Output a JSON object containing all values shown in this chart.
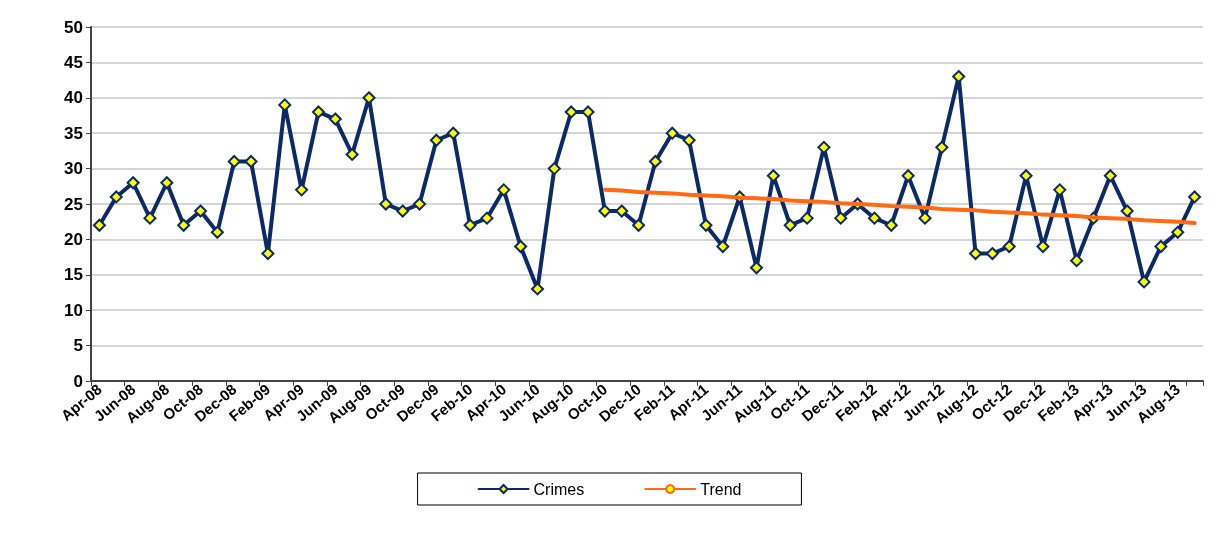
{
  "chart_data": {
    "type": "line",
    "categories": [
      "Apr-08",
      null,
      "Jun-08",
      null,
      "Aug-08",
      null,
      "Oct-08",
      null,
      "Dec-08",
      null,
      "Feb-09",
      null,
      "Apr-09",
      null,
      "Jun-09",
      null,
      "Aug-09",
      null,
      "Oct-09",
      null,
      "Dec-09",
      null,
      "Feb-10",
      null,
      "Apr-10",
      null,
      "Jun-10",
      null,
      "Aug-10",
      null,
      "Oct-10",
      null,
      "Dec-10",
      null,
      "Feb-11",
      null,
      "Apr-11",
      null,
      "Jun-11",
      null,
      "Aug-11",
      null,
      "Oct-11",
      null,
      "Dec-11",
      null,
      "Feb-12",
      null,
      "Apr-12",
      null,
      "Jun-12",
      null,
      "Aug-12",
      null,
      "Oct-12",
      null,
      "Dec-12",
      null,
      "Feb-13",
      null,
      "Apr-13",
      null,
      "Jun-13",
      null,
      "Aug-13",
      null
    ],
    "series": [
      {
        "name": "Crimes",
        "color": "#0d2a66",
        "marker": "diamond",
        "values": [
          22,
          26,
          28,
          23,
          28,
          22,
          24,
          21,
          31,
          31,
          18,
          39,
          27,
          38,
          37,
          32,
          40,
          25,
          24,
          25,
          34,
          35,
          22,
          23,
          27,
          19,
          13,
          30,
          38,
          38,
          24,
          24,
          22,
          31,
          35,
          34,
          22,
          19,
          26,
          16,
          29,
          22,
          23,
          33,
          23,
          25,
          23,
          22,
          29,
          23,
          33,
          43,
          18,
          18,
          19,
          29,
          19,
          27,
          17,
          23,
          29,
          24,
          14,
          19,
          21,
          26
        ]
      },
      {
        "name": "Trend",
        "color": "#ff6a13",
        "marker": "none",
        "values": [
          null,
          null,
          null,
          null,
          null,
          null,
          null,
          null,
          null,
          null,
          null,
          null,
          null,
          null,
          null,
          null,
          null,
          null,
          null,
          null,
          null,
          null,
          null,
          null,
          null,
          null,
          null,
          null,
          null,
          null,
          27.0,
          26.9,
          26.7,
          26.6,
          26.5,
          26.3,
          26.2,
          26.1,
          25.9,
          25.8,
          25.7,
          25.5,
          25.4,
          25.3,
          25.1,
          25.0,
          24.9,
          24.7,
          24.6,
          24.5,
          24.3,
          24.2,
          24.1,
          23.9,
          23.8,
          23.7,
          23.5,
          23.4,
          23.3,
          23.1,
          23.0,
          22.9,
          22.7,
          22.6,
          22.5,
          22.3
        ]
      }
    ],
    "ylim": [
      0,
      50
    ],
    "yticks": [
      0,
      5,
      10,
      15,
      20,
      25,
      30,
      35,
      40,
      45,
      50
    ],
    "grid": "y",
    "legend": "bottom",
    "line_style": "solid"
  }
}
